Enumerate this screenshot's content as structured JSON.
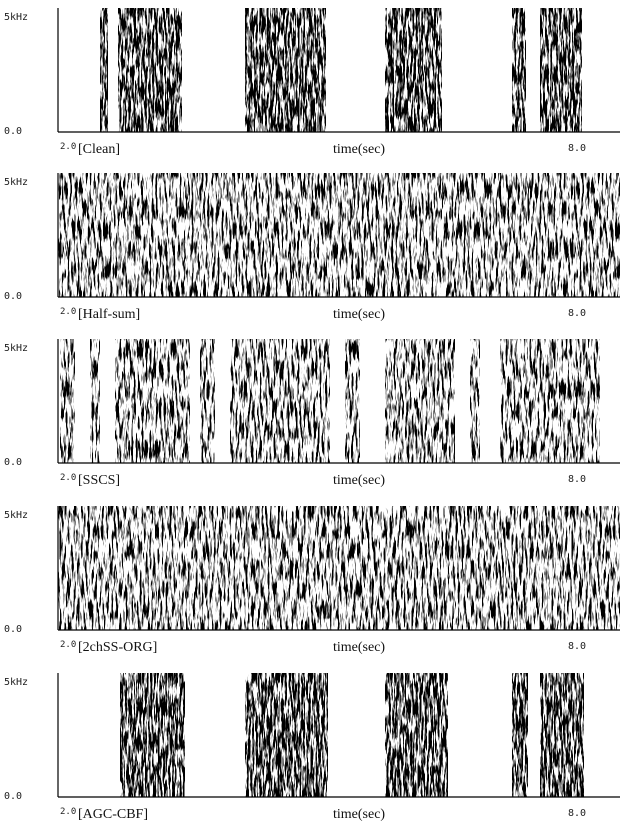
{
  "panels": [
    {
      "y_max_label": "5kHz",
      "y_min_label": "0.0",
      "x_start_label": "2.0",
      "name": "[Clean]",
      "x_axis_label": "time(sec)",
      "x_end_label": "8.0"
    },
    {
      "y_max_label": "5kHz",
      "y_min_label": "0.0",
      "x_start_label": "2.0",
      "name": "[Half-sum]",
      "x_axis_label": "time(sec)",
      "x_end_label": "8.0"
    },
    {
      "y_max_label": "5kHz",
      "y_min_label": "0.0",
      "x_start_label": "2.0",
      "name": "[SSCS]",
      "x_axis_label": "time(sec)",
      "x_end_label": "8.0"
    },
    {
      "y_max_label": "5kHz",
      "y_min_label": "0.0",
      "x_start_label": "2.0",
      "name": "[2chSS-ORG]",
      "x_axis_label": "time(sec)",
      "x_end_label": "8.0"
    },
    {
      "y_max_label": "5kHz",
      "y_min_label": "0.0",
      "x_start_label": "2.0",
      "name": "[AGC-CBF]",
      "x_axis_label": "time(sec)",
      "x_end_label": "8.0"
    }
  ]
}
